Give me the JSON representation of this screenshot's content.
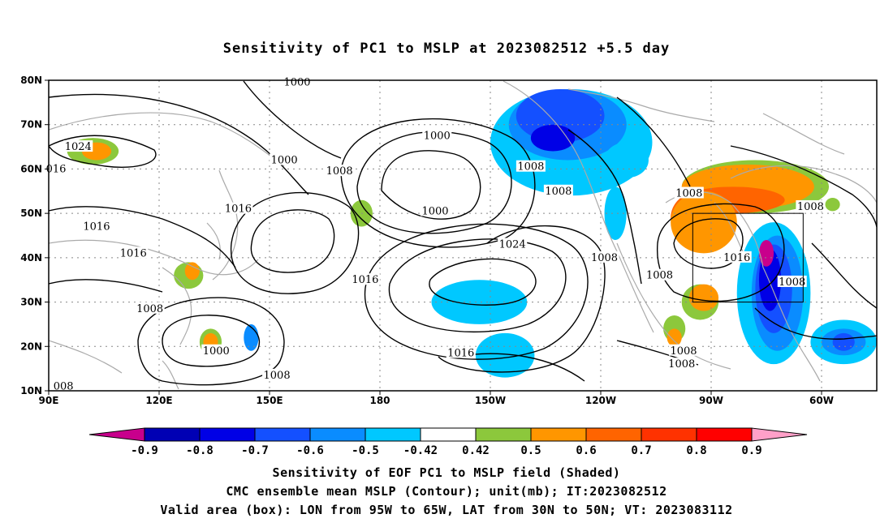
{
  "title": "Sensitivity of PC1 to MSLP at 2023082512 +5.5 day",
  "map": {
    "lat_labels": [
      "80N",
      "70N",
      "60N",
      "50N",
      "40N",
      "30N",
      "20N",
      "10N"
    ],
    "lon_labels": [
      "90E",
      "120E",
      "150E",
      "180",
      "150W",
      "120W",
      "90W",
      "60W"
    ],
    "contour_labels": [
      {
        "text": "1000",
        "lon": 157.5,
        "lat": 79.5
      },
      {
        "text": "1024",
        "lon": 98,
        "lat": 65
      },
      {
        "text": "016",
        "lon": 92,
        "lat": 60
      },
      {
        "text": "1000",
        "lon": 154,
        "lat": 62
      },
      {
        "text": "1008",
        "lon": 169,
        "lat": 59.5
      },
      {
        "text": "1000",
        "lon": -164.5,
        "lat": 67.5
      },
      {
        "text": "1008",
        "lon": -139,
        "lat": 60.5
      },
      {
        "text": "1000",
        "lon": -165,
        "lat": 50.5
      },
      {
        "text": "1016",
        "lon": 103,
        "lat": 47
      },
      {
        "text": "1016",
        "lon": 141.5,
        "lat": 51
      },
      {
        "text": "1016",
        "lon": 113,
        "lat": 41
      },
      {
        "text": "1016",
        "lon": 176,
        "lat": 35
      },
      {
        "text": "1024",
        "lon": -144,
        "lat": 43
      },
      {
        "text": "1008",
        "lon": -119,
        "lat": 40
      },
      {
        "text": "1008",
        "lon": -104,
        "lat": 36
      },
      {
        "text": "1008",
        "lon": -131.5,
        "lat": 55
      },
      {
        "text": "1008",
        "lon": -96,
        "lat": 54.5
      },
      {
        "text": "1016",
        "lon": -83,
        "lat": 40
      },
      {
        "text": "1008",
        "lon": -68,
        "lat": 34.5
      },
      {
        "text": "1008",
        "lon": -63,
        "lat": 51.5
      },
      {
        "text": "1008",
        "lon": 117.5,
        "lat": 28.5
      },
      {
        "text": "1000",
        "lon": 135.5,
        "lat": 19
      },
      {
        "text": "1008",
        "lon": 152,
        "lat": 13.5
      },
      {
        "text": "1016",
        "lon": -158,
        "lat": 18.5
      },
      {
        "text": "1008",
        "lon": -97.5,
        "lat": 19
      },
      {
        "text": "1008",
        "lon": -98,
        "lat": 16
      },
      {
        "text": "008",
        "lon": 94,
        "lat": 11
      }
    ],
    "shaded_regions": [
      {
        "value": -0.5,
        "color": "#00c8ff",
        "center": [
          -128,
          66
        ],
        "extent": [
          22,
          12
        ]
      },
      {
        "value": -0.6,
        "color": "#0a8cff",
        "center": [
          -129,
          70
        ],
        "extent": [
          16,
          8
        ]
      },
      {
        "value": -0.7,
        "color": "#1450ff",
        "center": [
          -131,
          72
        ],
        "extent": [
          12,
          6
        ]
      },
      {
        "value": -0.8,
        "color": "#0000e6",
        "center": [
          -133,
          67
        ],
        "extent": [
          6,
          3
        ]
      },
      {
        "value": -0.5,
        "color": "#00c8ff",
        "center": [
          -113,
          62
        ],
        "extent": [
          6,
          4
        ]
      },
      {
        "value": -0.5,
        "color": "#00c8ff",
        "center": [
          -116,
          50
        ],
        "extent": [
          3,
          6
        ]
      },
      {
        "value": -0.5,
        "color": "#00c8ff",
        "center": [
          -153,
          30
        ],
        "extent": [
          13,
          5
        ]
      },
      {
        "value": -0.5,
        "color": "#00c8ff",
        "center": [
          -146,
          18
        ],
        "extent": [
          8,
          5
        ]
      },
      {
        "value": -0.5,
        "color": "#00c8ff",
        "center": [
          -73,
          32
        ],
        "extent": [
          10,
          16
        ]
      },
      {
        "value": -0.6,
        "color": "#0a8cff",
        "center": [
          -72,
          32
        ],
        "extent": [
          7,
          13
        ]
      },
      {
        "value": -0.7,
        "color": "#1450ff",
        "center": [
          -73,
          33
        ],
        "extent": [
          5,
          10
        ]
      },
      {
        "value": -0.8,
        "color": "#0000e6",
        "center": [
          -74,
          35
        ],
        "extent": [
          3,
          7
        ]
      },
      {
        "value": -0.9,
        "color": "#c8008c",
        "center": [
          -75,
          41
        ],
        "extent": [
          2,
          3
        ]
      },
      {
        "value": -0.5,
        "color": "#00c8ff",
        "center": [
          -54,
          21
        ],
        "extent": [
          9,
          5
        ]
      },
      {
        "value": -0.6,
        "color": "#0a8cff",
        "center": [
          -54,
          21
        ],
        "extent": [
          6,
          3
        ]
      },
      {
        "value": -0.7,
        "color": "#1450ff",
        "center": [
          -54,
          21
        ],
        "extent": [
          3,
          2
        ]
      },
      {
        "value": -0.6,
        "color": "#0a8cff",
        "center": [
          145,
          22
        ],
        "extent": [
          2,
          3
        ]
      },
      {
        "value": 0.5,
        "color": "#8cc83c",
        "center": [
          102,
          64
        ],
        "extent": [
          7,
          3
        ]
      },
      {
        "value": 0.6,
        "color": "#ff9600",
        "center": [
          103,
          64
        ],
        "extent": [
          4,
          2
        ]
      },
      {
        "value": 0.5,
        "color": "#8cc83c",
        "center": [
          175,
          50
        ],
        "extent": [
          3,
          3
        ]
      },
      {
        "value": 0.5,
        "color": "#8cc83c",
        "center": [
          128,
          36
        ],
        "extent": [
          4,
          3
        ]
      },
      {
        "value": 0.6,
        "color": "#ff9600",
        "center": [
          129,
          37
        ],
        "extent": [
          2,
          2
        ]
      },
      {
        "value": 0.5,
        "color": "#8cc83c",
        "center": [
          134,
          21
        ],
        "extent": [
          3,
          3
        ]
      },
      {
        "value": 0.6,
        "color": "#ff9600",
        "center": [
          134,
          21
        ],
        "extent": [
          2,
          2
        ]
      },
      {
        "value": 0.5,
        "color": "#8cc83c",
        "center": [
          -78,
          56
        ],
        "extent": [
          20,
          6
        ]
      },
      {
        "value": 0.6,
        "color": "#ff9600",
        "center": [
          -80,
          56
        ],
        "extent": [
          18,
          5
        ]
      },
      {
        "value": 0.7,
        "color": "#ff6400",
        "center": [
          -84,
          53
        ],
        "extent": [
          14,
          3
        ]
      },
      {
        "value": 0.7,
        "color": "#ff6400",
        "center": [
          -93,
          49
        ],
        "extent": [
          8,
          6
        ]
      },
      {
        "value": 0.6,
        "color": "#ff9600",
        "center": [
          -92,
          48
        ],
        "extent": [
          9,
          7
        ]
      },
      {
        "value": 0.5,
        "color": "#8cc83c",
        "center": [
          -93,
          30
        ],
        "extent": [
          5,
          4
        ]
      },
      {
        "value": 0.6,
        "color": "#ff9600",
        "center": [
          -92,
          31
        ],
        "extent": [
          4,
          3
        ]
      },
      {
        "value": 0.5,
        "color": "#8cc83c",
        "center": [
          -100,
          24
        ],
        "extent": [
          3,
          3
        ]
      },
      {
        "value": 0.6,
        "color": "#ff9600",
        "center": [
          -100,
          22
        ],
        "extent": [
          2,
          2
        ]
      },
      {
        "value": 0.5,
        "color": "#8cc83c",
        "center": [
          -57,
          52
        ],
        "extent": [
          2,
          1.5
        ]
      }
    ],
    "valid_box": {
      "lon_min": -95,
      "lon_max": -65,
      "lat_min": 30,
      "lat_max": 50
    }
  },
  "colorbar": {
    "labels": [
      "-0.9",
      "-0.8",
      "-0.7",
      "-0.6",
      "-0.5",
      "-0.42",
      "0.42",
      "0.5",
      "0.6",
      "0.7",
      "0.8",
      "0.9"
    ],
    "colors": [
      "#c8008c",
      "#0000b4",
      "#0000e6",
      "#1450ff",
      "#0a8cff",
      "#00c8ff",
      "#ffffff",
      "#8cc83c",
      "#ff9600",
      "#ff6400",
      "#ff3200",
      "#ff0000",
      "#ffa0c8"
    ]
  },
  "footer": {
    "line1": "Sensitivity of EOF PC1 to MSLP field (Shaded)",
    "line2": "CMC ensemble mean MSLP (Contour); unit(mb); IT:2023082512",
    "line3": "Valid area (box): LON from 95W to 65W, LAT from 30N to 50N; VT: 2023083112"
  }
}
